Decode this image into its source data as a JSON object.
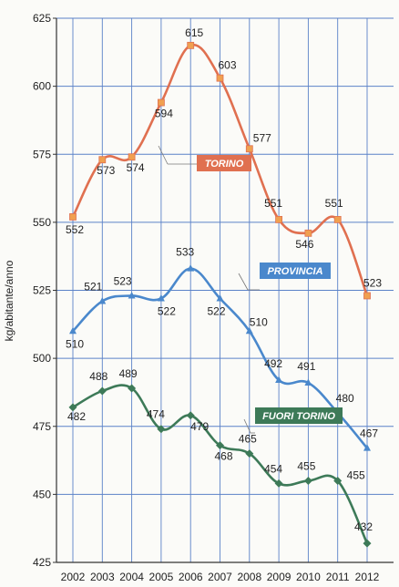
{
  "chart_data": {
    "type": "line",
    "title": "",
    "xlabel": "",
    "ylabel": "kg/abitante/anno",
    "ylim": [
      425,
      625
    ],
    "yticks": [
      425,
      450,
      475,
      500,
      525,
      550,
      575,
      600,
      625
    ],
    "grid": true,
    "categories": [
      "2002",
      "2003",
      "2004",
      "2005",
      "2006",
      "2007",
      "2008",
      "2009",
      "2010",
      "2011",
      "2012"
    ],
    "series": [
      {
        "name": "TORINO",
        "color": "#e07050",
        "marker_color": "#f0a050",
        "values": [
          552,
          573,
          574,
          594,
          615,
          603,
          577,
          551,
          546,
          551,
          523
        ],
        "labels": [
          "552",
          "573",
          "574",
          "594",
          "615",
          "603",
          "577",
          "551",
          "546",
          "551",
          "523"
        ]
      },
      {
        "name": "PROVINCIA",
        "color": "#4a88cc",
        "marker_color": "#4a88cc",
        "values": [
          510,
          521,
          523,
          522,
          533,
          522,
          510,
          492,
          491,
          480,
          467
        ],
        "labels": [
          "510",
          "521",
          "523",
          "522",
          "533",
          "522",
          "510",
          "492",
          "491",
          "480",
          "467"
        ]
      },
      {
        "name": "FUORI TORINO",
        "color": "#3d7a58",
        "marker_color": "#3d7a58",
        "values": [
          482,
          488,
          489,
          474,
          479,
          468,
          465,
          454,
          455,
          455,
          432
        ],
        "labels": [
          "482",
          "488",
          "489",
          "474",
          "479",
          "468",
          "465",
          "454",
          "455",
          "455",
          "432"
        ]
      }
    ]
  }
}
